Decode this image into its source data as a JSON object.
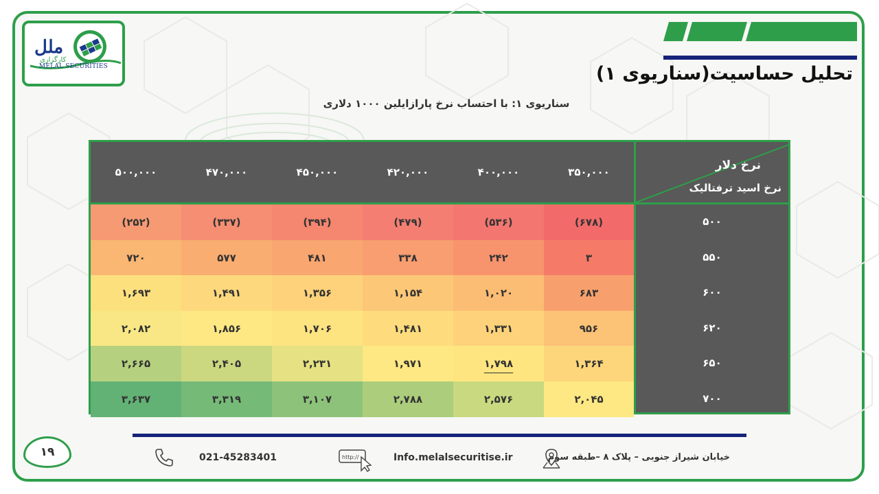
{
  "logo": {
    "brand_fa": "ملل",
    "brand_sub_fa": "کارگزاری",
    "brand_en": "MELAL SECURITIES"
  },
  "title": "تحلیل حساسیت(سناریوی ۱)",
  "subtitle": "سناریوی ۱: با احتساب نرخ پارازایلین ۱۰۰۰ دلاری",
  "table": {
    "corner_top": "نرخ دلار",
    "corner_bottom": "نرخ اسید ترفتالیک",
    "columns": [
      "۳۵۰,۰۰۰",
      "۴۰۰,۰۰۰",
      "۴۲۰,۰۰۰",
      "۴۵۰,۰۰۰",
      "۴۷۰,۰۰۰",
      "۵۰۰,۰۰۰"
    ],
    "rows": [
      {
        "label": "۵۰۰",
        "cells": [
          "(۶۷۸)",
          "(۵۳۶)",
          "(۴۷۹)",
          "(۳۹۴)",
          "(۳۳۷)",
          "(۲۵۲)"
        ]
      },
      {
        "label": "۵۵۰",
        "cells": [
          "۳",
          "۲۴۲",
          "۳۳۸",
          "۴۸۱",
          "۵۷۷",
          "۷۲۰"
        ]
      },
      {
        "label": "۶۰۰",
        "cells": [
          "۶۸۳",
          "۱,۰۲۰",
          "۱,۱۵۴",
          "۱,۳۵۶",
          "۱,۴۹۱",
          "۱,۶۹۳"
        ]
      },
      {
        "label": "۶۲۰",
        "cells": [
          "۹۵۶",
          "۱,۳۳۱",
          "۱,۴۸۱",
          "۱,۷۰۶",
          "۱,۸۵۶",
          "۲,۰۸۲"
        ]
      },
      {
        "label": "۶۵۰",
        "cells": [
          "۱,۳۶۴",
          "۱,۷۹۸",
          "۱,۹۷۱",
          "۲,۲۳۱",
          "۲,۴۰۵",
          "۲,۶۶۵"
        ]
      },
      {
        "label": "۷۰۰",
        "cells": [
          "۲,۰۴۵",
          "۲,۵۷۶",
          "۲,۷۸۸",
          "۳,۱۰۷",
          "۳,۳۱۹",
          "۳,۶۳۷"
        ]
      }
    ],
    "colors": [
      [
        "#f26a6a",
        "#f37670",
        "#f47e72",
        "#f5866f",
        "#f58e72",
        "#f69a73"
      ],
      [
        "#f57b68",
        "#f7946e",
        "#f89e70",
        "#f9a670",
        "#f9ad71",
        "#fab673"
      ],
      [
        "#f8a06d",
        "#fbbd74",
        "#fcc777",
        "#fdd27a",
        "#fdd87c",
        "#fde07e"
      ],
      [
        "#fcc276",
        "#fdd27a",
        "#fedb7d",
        "#fee381",
        "#fde883",
        "#f8e784"
      ],
      [
        "#fdd67b",
        "#fee580",
        "#fde883",
        "#e6e182",
        "#cbd880",
        "#b5d07e"
      ],
      [
        "#fde883",
        "#c8d97f",
        "#abcd7c",
        "#8cc27a",
        "#76ba78",
        "#63b275"
      ]
    ],
    "underlined_cell": {
      "row": 4,
      "col": 1
    }
  },
  "footer": {
    "page_number": "۱۹",
    "phone": "021-45283401",
    "website": "Info.melalsecuritise.ir",
    "address": "خیابان شیراز جنوبی – پلاک ۸ –طبقه سوم",
    "url_icon_text": "http://"
  },
  "accent": "#2e9e4a",
  "navy": "#15237a",
  "icons": [
    "phone-icon",
    "browser-icon",
    "location-pin-icon"
  ]
}
